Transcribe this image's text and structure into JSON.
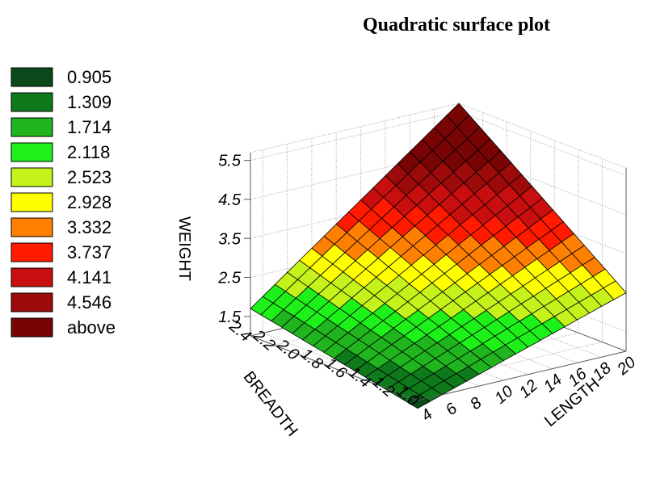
{
  "chart_data": {
    "type": "surface",
    "title": "Quadratic surface plot",
    "xlabel": "LENGTH",
    "ylabel": "BREADTH",
    "zlabel": "WEIGHT",
    "x_ticks": [
      "4",
      "6",
      "8",
      "10",
      "12",
      "14",
      "16",
      "18",
      "20"
    ],
    "y_ticks": [
      "1.0",
      "1.2",
      "1.4",
      "1.6",
      "1.8",
      "2.0",
      "2.2",
      "2.4"
    ],
    "z_ticks": [
      "1.5",
      "2.5",
      "3.5",
      "4.5",
      "5.5"
    ],
    "xlim": [
      3,
      20
    ],
    "ylim": [
      1.0,
      2.4
    ],
    "zlim": [
      1.0,
      5.7
    ],
    "grid": true,
    "legend_position": "left",
    "surface": {
      "description_points": [
        {
          "length": 3,
          "breadth": 1.0,
          "weight": 0.8
        },
        {
          "length": 20,
          "breadth": 1.0,
          "weight": 2.5
        },
        {
          "length": 3,
          "breadth": 2.4,
          "weight": 1.7
        },
        {
          "length": 20,
          "breadth": 2.4,
          "weight": 5.7
        },
        {
          "length": 20,
          "breadth": 1.7,
          "weight": 4.6
        },
        {
          "length": 12,
          "breadth": 2.4,
          "weight": 5.0
        }
      ]
    },
    "legend": [
      {
        "label": "0.905",
        "color": "#0a4a1a"
      },
      {
        "label": "1.309",
        "color": "#0f7a1c"
      },
      {
        "label": "1.714",
        "color": "#20b41e"
      },
      {
        "label": "2.118",
        "color": "#1ef01a"
      },
      {
        "label": "2.523",
        "color": "#c4f21a"
      },
      {
        "label": "2.928",
        "color": "#ffff00"
      },
      {
        "label": "3.332",
        "color": "#ff7f00"
      },
      {
        "label": "3.737",
        "color": "#ff1a00"
      },
      {
        "label": "4.141",
        "color": "#c80e0e"
      },
      {
        "label": "4.546",
        "color": "#9c0a0a"
      },
      {
        "label": "above",
        "color": "#780404"
      }
    ]
  }
}
